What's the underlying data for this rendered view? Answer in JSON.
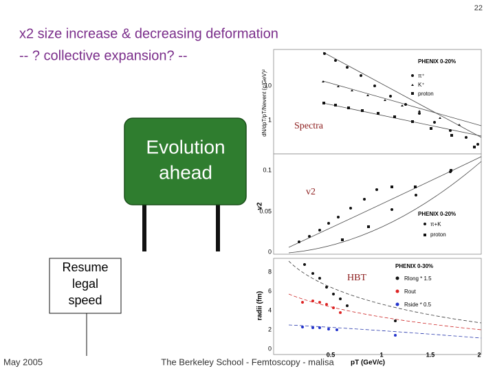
{
  "slide": {
    "page_number": "22",
    "title_line_1": "x2 size increase & decreasing deformation",
    "title_line_2": "-- ? collective expansion? --",
    "sign_main": [
      "Evolution",
      "ahead"
    ],
    "sign_small": [
      "Resume",
      "legal",
      "speed"
    ],
    "footer_date": "May 2005",
    "footer_center": "The Berkeley School - Femtoscopy - malisa"
  },
  "figure": {
    "spectra": {
      "label": "Spectra",
      "legend_title": "PHENIX 0-20%",
      "legend": [
        "π⁺",
        "K⁺",
        "proton"
      ],
      "y_title": "dN/dpT/pT/Nevent (c/GeV)²",
      "yticks": [
        "10",
        "1"
      ]
    },
    "v2": {
      "label": "v2",
      "legend_title": "PHENIX 0-20%",
      "legend": [
        "π+K",
        "proton"
      ],
      "y_title": "v2",
      "yticks": [
        "0.1",
        "0.05",
        "0"
      ]
    },
    "hbt": {
      "label": "HBT",
      "legend_title": "PHENIX 0-30%",
      "legend": [
        "Rlong * 1.5",
        "Rout",
        "Rside * 0.5"
      ],
      "y_title": "radii (fm)",
      "yticks": [
        "8",
        "6",
        "4",
        "2",
        "0"
      ]
    },
    "xticks": [
      "0.5",
      "1",
      "1.5",
      "2"
    ],
    "x_title": "pT (GeV/c)"
  }
}
